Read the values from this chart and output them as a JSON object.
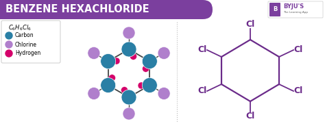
{
  "title": "BENZENE HEXACHLORIDE",
  "title_bg": "#7B3F9E",
  "title_color": "#FFFFFF",
  "bg_color": "#FFFFFF",
  "carbon_color": "#2A7FA5",
  "chlorine_color": "#B07FCC",
  "hydrogen_color": "#D4006A",
  "bond_color": "#444444",
  "struct2_color": "#6B2B8A",
  "dashed_line_color": "#BBBBBB",
  "legend_formula": "C₆H₆Cl₆",
  "legend_items": [
    "Carbon",
    "Chlorine",
    "Hydrogen"
  ]
}
